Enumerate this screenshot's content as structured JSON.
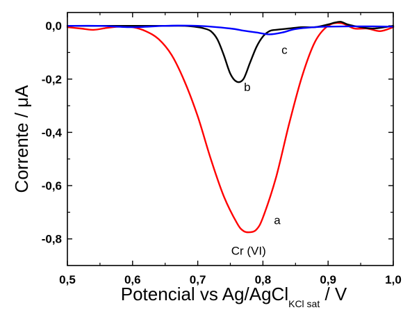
{
  "chart_data": {
    "type": "line",
    "xlabel_main": "Potencial vs Ag/AgCl",
    "xlabel_sub": "KCl sat",
    "xlabel_unit": " / V",
    "ylabel": "Corrente / μA",
    "xlim": [
      0.5,
      1.0
    ],
    "ylim": [
      -0.9,
      0.05
    ],
    "x_ticks": [
      0.5,
      0.6,
      0.7,
      0.8,
      0.9,
      1.0
    ],
    "x_tick_labels": [
      "0,5",
      "0,6",
      "0,7",
      "0,8",
      "0,9",
      "1,0"
    ],
    "y_ticks": [
      0.0,
      -0.2,
      -0.4,
      -0.6,
      -0.8
    ],
    "y_tick_labels": [
      "0,0",
      "-0,2",
      "-0,4",
      "-0,6",
      "-0,8"
    ],
    "grid": false,
    "series": [
      {
        "color": "#ff0000",
        "x": [
          0.5,
          0.52,
          0.54,
          0.56,
          0.58,
          0.6,
          0.62,
          0.64,
          0.66,
          0.68,
          0.7,
          0.72,
          0.74,
          0.76,
          0.77,
          0.78,
          0.79,
          0.8,
          0.82,
          0.84,
          0.86,
          0.88,
          0.9,
          0.92,
          0.94,
          0.96,
          0.98,
          1.0
        ],
        "y": [
          -0.005,
          -0.01,
          -0.015,
          -0.008,
          -0.003,
          -0.005,
          -0.02,
          -0.05,
          -0.11,
          -0.21,
          -0.34,
          -0.5,
          -0.64,
          -0.74,
          -0.77,
          -0.775,
          -0.765,
          -0.72,
          -0.57,
          -0.37,
          -0.19,
          -0.06,
          0.0,
          0.01,
          -0.01,
          -0.01,
          -0.02,
          -0.005
        ]
      },
      {
        "color": "#000000",
        "x": [
          0.5,
          0.55,
          0.6,
          0.65,
          0.68,
          0.7,
          0.71,
          0.72,
          0.73,
          0.74,
          0.75,
          0.76,
          0.77,
          0.78,
          0.79,
          0.8,
          0.81,
          0.82,
          0.84,
          0.86,
          0.88,
          0.9,
          0.91,
          0.92,
          0.93,
          0.95,
          0.97,
          1.0
        ],
        "y": [
          0.0,
          0.0,
          0.0,
          0.0,
          0.0,
          -0.005,
          -0.01,
          -0.02,
          -0.05,
          -0.11,
          -0.18,
          -0.21,
          -0.2,
          -0.14,
          -0.08,
          -0.04,
          -0.02,
          -0.015,
          -0.01,
          -0.005,
          -0.005,
          0.005,
          0.012,
          0.015,
          0.005,
          -0.005,
          -0.01,
          0.0
        ]
      },
      {
        "color": "#0000ff",
        "x": [
          0.5,
          0.55,
          0.6,
          0.65,
          0.7,
          0.75,
          0.77,
          0.79,
          0.81,
          0.83,
          0.85,
          0.88,
          0.9,
          0.95,
          1.0
        ],
        "y": [
          0.0,
          0.0,
          -0.005,
          0.0,
          0.0,
          -0.01,
          -0.018,
          -0.025,
          -0.032,
          -0.025,
          -0.012,
          -0.005,
          -0.003,
          -0.002,
          -0.003
        ]
      }
    ],
    "annotations": [
      {
        "text": "a",
        "x": 0.822,
        "y": -0.745
      },
      {
        "text": "b",
        "x": 0.776,
        "y": -0.245
      },
      {
        "text": "c",
        "x": 0.833,
        "y": -0.105
      },
      {
        "text": "Cr (VI)",
        "x": 0.778,
        "y": -0.86
      }
    ]
  }
}
